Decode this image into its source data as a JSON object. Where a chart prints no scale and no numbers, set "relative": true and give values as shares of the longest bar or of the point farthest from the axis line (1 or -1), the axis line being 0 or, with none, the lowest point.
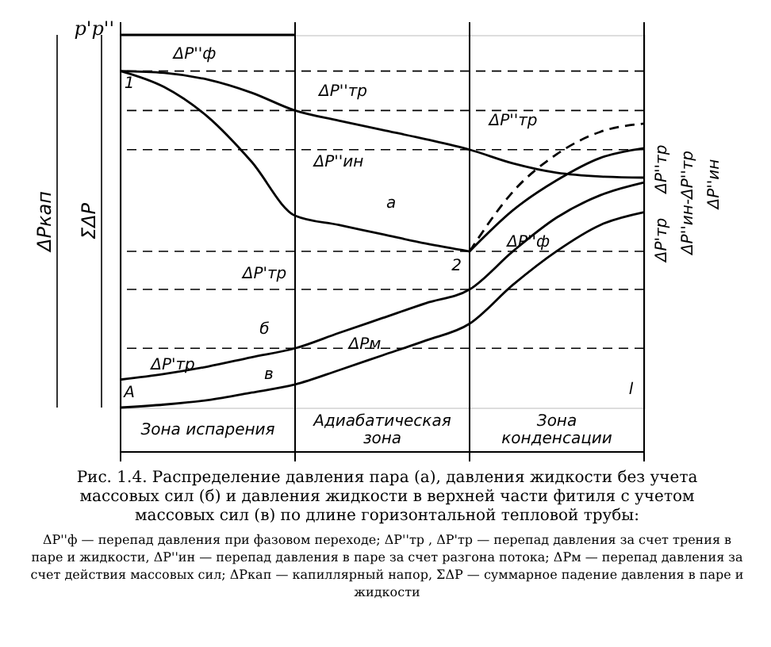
{
  "chart_data": {
    "type": "line",
    "relative": true,
    "title": "Рис. 1.4. Распределение давления пара (а), давления жидкости без учета массовых сил (б) и давления жидкости в верхней части фитиля с учетом массовых сил (в) по длине горизонтальной тепловой трубы:",
    "ylabel": "p'p''",
    "categories": [
      null,
      null,
      null,
      null,
      null,
      null,
      null,
      null,
      null,
      null,
      null,
      null,
      null
    ],
    "series": [
      {
        "color": "#000000",
        "values": [
          1.0,
          1.0,
          1.0,
          1.0,
          1.0,
          null,
          null,
          null,
          null,
          null,
          null,
          null,
          null
        ]
      },
      {
        "color": "#000000",
        "values": [
          0.903,
          0.898,
          0.88,
          0.845,
          0.797,
          0.77,
          0.745,
          0.72,
          0.692,
          0.655,
          0.63,
          0.62,
          0.617
        ]
      },
      {
        "color": "#000000",
        "values": [
          0.903,
          0.86,
          0.78,
          0.66,
          0.515,
          0.49,
          0.465,
          0.44,
          0.419,
          null,
          null,
          null,
          null
        ]
      },
      {
        "color": "#000000",
        "line_style": "dashed",
        "values": [
          null,
          null,
          null,
          null,
          null,
          null,
          null,
          null,
          0.419,
          0.58,
          0.68,
          0.74,
          0.762
        ]
      },
      {
        "color": "#000000",
        "values": [
          null,
          null,
          null,
          null,
          null,
          null,
          null,
          null,
          0.419,
          0.53,
          0.61,
          0.67,
          0.696
        ]
      },
      {
        "color": "#000000",
        "values": [
          0.075,
          0.09,
          0.11,
          0.135,
          0.159,
          0.2,
          0.24,
          0.28,
          0.317,
          0.42,
          0.51,
          0.57,
          0.604
        ]
      },
      {
        "color": "#000000",
        "values": [
          0.0,
          0.008,
          0.02,
          0.04,
          0.062,
          0.1,
          0.14,
          0.18,
          0.225,
          0.33,
          0.42,
          0.49,
          0.524
        ]
      }
    ],
    "ref_lines": [
      {
        "axis": "y",
        "value": 0.903,
        "line_style": "dashed",
        "color": "#000000"
      },
      {
        "axis": "y",
        "value": 0.797,
        "line_style": "dashed",
        "color": "#000000"
      },
      {
        "axis": "y",
        "value": 0.692,
        "line_style": "dashed",
        "color": "#000000"
      },
      {
        "axis": "y",
        "value": 0.419,
        "line_style": "dashed",
        "color": "#000000"
      },
      {
        "axis": "y",
        "value": 0.317,
        "line_style": "dashed",
        "color": "#000000"
      },
      {
        "axis": "y",
        "value": 0.159,
        "line_style": "dashed",
        "color": "#000000"
      }
    ],
    "annotations": [
      "Зона испарения",
      "Адиабатическая зона",
      "Зона конденсации",
      "ΔP''ф — перепад давления при фазовом переходе; ΔP''тр , ΔP'тр — перепад давления за счет трения в паре и жидкости, ΔP''ин — перепад давления в паре за счет разгона потока; ΔPм — перепад давления за счет действия массовых сил; ΔPкап — капиллярный напор, ΣΔP — суммарное падение давления в паре и жидкости",
      "ΔPкап",
      "ΣΔP",
      "ΔP''ф",
      "ΔP''тр",
      "ΔP''ин",
      "а",
      "ΔP'тр",
      "ΔP'тр",
      "б",
      "в",
      "ΔPм",
      "ΔP''тр",
      "ΔP''ф",
      "1",
      "2",
      "A",
      "l",
      "ΔP''тр",
      "ΔP'тр",
      "ΔP''ин-ΔP''тр",
      "ΔP''ин"
    ],
    "marker": "none"
  }
}
